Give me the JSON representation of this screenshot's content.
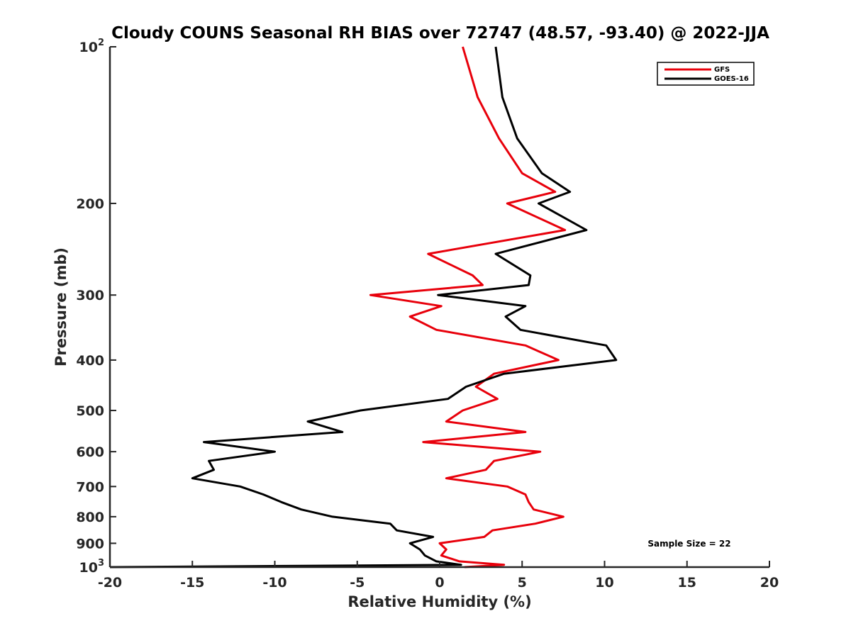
{
  "chart_data": {
    "type": "line",
    "title": "Cloudy COUNS Seasonal RH BIAS over 72747 (48.57, -93.40) @ 2022-JJA",
    "xlabel": "Relative Humidity (%)",
    "ylabel": "Pressure (mb)",
    "xlim": [
      -20,
      20
    ],
    "ylim": [
      100,
      1000
    ],
    "yscale": "log",
    "y_reversed": true,
    "x_ticks": [
      -20,
      -15,
      -10,
      -5,
      0,
      5,
      10,
      15,
      20
    ],
    "x_tick_labels": [
      "-20",
      "-15",
      "-10",
      "-5",
      "0",
      "5",
      "10",
      "15",
      "20"
    ],
    "y_ticks": [
      100,
      200,
      300,
      400,
      500,
      600,
      700,
      800,
      900,
      1000
    ],
    "y_tick_labels": [
      {
        "base": "10",
        "exp": "2"
      },
      {
        "base": "200",
        "exp": ""
      },
      {
        "base": "300",
        "exp": ""
      },
      {
        "base": "400",
        "exp": ""
      },
      {
        "base": "500",
        "exp": ""
      },
      {
        "base": "600",
        "exp": ""
      },
      {
        "base": "700",
        "exp": ""
      },
      {
        "base": "800",
        "exp": ""
      },
      {
        "base": "900",
        "exp": ""
      },
      {
        "base": "10",
        "exp": "3"
      }
    ],
    "legend_position": "top-right",
    "annotation": "Sample Size = 22",
    "series": [
      {
        "name": "GFS",
        "color": "#e8000b",
        "pressure": [
          100,
          125,
          150,
          175,
          190,
          200,
          225,
          250,
          275,
          287,
          300,
          315,
          330,
          350,
          375,
          400,
          425,
          450,
          475,
          500,
          525,
          550,
          575,
          600,
          625,
          650,
          675,
          700,
          725,
          750,
          775,
          800,
          825,
          850,
          875,
          900,
          925,
          950,
          975,
          990,
          1000
        ],
        "values": [
          1.4,
          2.3,
          3.6,
          5.0,
          7.0,
          4.1,
          7.6,
          -0.7,
          2.0,
          2.6,
          -4.2,
          0.1,
          -1.8,
          -0.2,
          5.2,
          7.2,
          3.3,
          2.2,
          3.5,
          1.4,
          0.4,
          5.2,
          -1.0,
          6.1,
          3.3,
          2.8,
          0.4,
          4.1,
          5.2,
          5.4,
          5.7,
          7.5,
          5.8,
          3.2,
          2.7,
          0.0,
          0.4,
          0.1,
          1.2,
          3.9,
          1.5
        ]
      },
      {
        "name": "GOES-16",
        "color": "#000000",
        "pressure": [
          100,
          125,
          150,
          175,
          190,
          200,
          225,
          250,
          275,
          287,
          300,
          315,
          330,
          350,
          375,
          400,
          425,
          450,
          475,
          500,
          525,
          550,
          575,
          600,
          625,
          650,
          675,
          700,
          725,
          750,
          775,
          800,
          825,
          850,
          875,
          900,
          925,
          950,
          975,
          990,
          1000
        ],
        "values": [
          3.4,
          3.8,
          4.7,
          6.2,
          7.9,
          6.0,
          8.9,
          3.4,
          5.5,
          5.4,
          -0.1,
          5.2,
          4.0,
          4.9,
          10.1,
          10.7,
          3.9,
          1.6,
          0.5,
          -4.8,
          -8.0,
          -5.9,
          -14.3,
          -10.0,
          -14.0,
          -13.7,
          -15.0,
          -12.1,
          -10.7,
          -9.6,
          -8.4,
          -6.5,
          -3.0,
          -2.6,
          -0.4,
          -1.8,
          -1.2,
          -0.9,
          -0.2,
          1.3,
          -20.0
        ]
      }
    ]
  }
}
